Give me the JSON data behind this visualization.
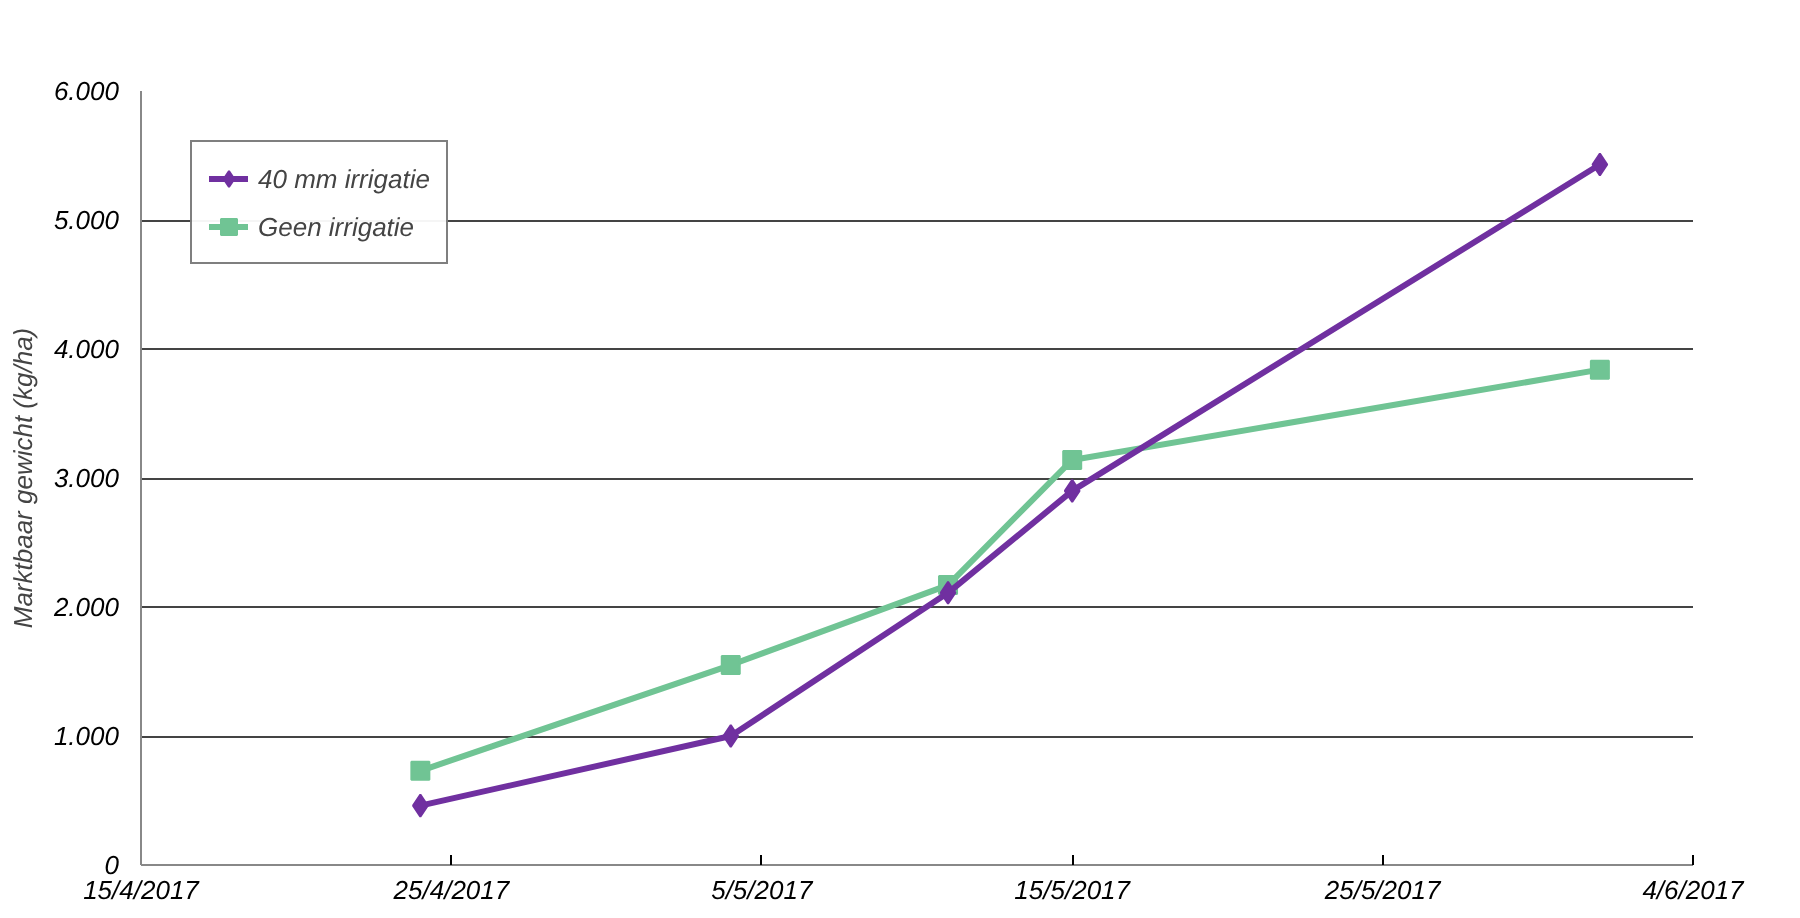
{
  "chart_data": {
    "type": "line",
    "ylabel": "Marktbaar gewicht (kg/ha)",
    "x": [
      "2017-04-24",
      "2017-05-04",
      "2017-05-11",
      "2017-05-15",
      "2017-06-01"
    ],
    "series": [
      {
        "name": "40 mm irrigatie",
        "color": "#7030a0",
        "marker": "diamond",
        "values": [
          460,
          1000,
          2110,
          2900,
          5430
        ]
      },
      {
        "name": "Geen irrigatie",
        "color": "#70c494",
        "marker": "square",
        "values": [
          730,
          1550,
          2170,
          3140,
          3840
        ]
      }
    ],
    "xlim": [
      "2017-04-15",
      "2017-06-04"
    ],
    "xticks": [
      {
        "value": "2017-04-15",
        "label": "15/4/2017"
      },
      {
        "value": "2017-04-25",
        "label": "25/4/2017"
      },
      {
        "value": "2017-05-05",
        "label": "5/5/2017"
      },
      {
        "value": "2017-05-15",
        "label": "15/5/2017"
      },
      {
        "value": "2017-05-25",
        "label": "25/5/2017"
      },
      {
        "value": "2017-06-04",
        "label": "4/6/2017"
      }
    ],
    "ylim": [
      0,
      6000
    ],
    "yticks": [
      0,
      {
        "value": 1000,
        "label": "1.000"
      },
      {
        "value": 2000,
        "label": "2.000"
      },
      {
        "value": 3000,
        "label": "3.000"
      },
      {
        "value": 4000,
        "label": "4.000"
      },
      {
        "value": 5000,
        "label": "5.000"
      },
      {
        "value": 6000,
        "label": "6.000"
      }
    ],
    "grid": "y",
    "legend": "top left",
    "line_style": "solid"
  }
}
